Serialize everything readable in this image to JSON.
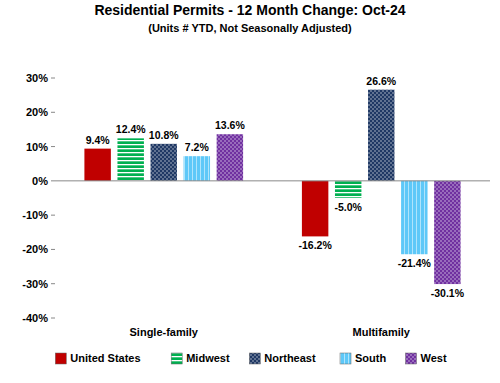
{
  "chart_data": {
    "type": "bar",
    "title": "Residential Permits - 12 Month Change: Oct-24",
    "subtitle": "(Units # YTD, Not Seasonally Adjusted)",
    "categories": [
      "Single-family",
      "Multifamily"
    ],
    "series": [
      {
        "name": "United States",
        "color": "#c00000",
        "values": [
          9.4,
          -16.2
        ],
        "value_labels": [
          "9.4%",
          "-16.2%"
        ]
      },
      {
        "name": "Midwest",
        "color": "#00b050",
        "values": [
          12.4,
          -5.0
        ],
        "value_labels": [
          "12.4%",
          "-5.0%"
        ]
      },
      {
        "name": "Northeast",
        "color": "#1f3864",
        "values": [
          10.8,
          26.6
        ],
        "value_labels": [
          "10.8%",
          "26.6%"
        ]
      },
      {
        "name": "South",
        "color": "#5ec8f8",
        "values": [
          7.2,
          -21.4
        ],
        "value_labels": [
          "7.2%",
          "-21.4%"
        ]
      },
      {
        "name": "West",
        "color": "#7030a0",
        "values": [
          13.6,
          -30.1
        ],
        "value_labels": [
          "13.6%",
          "-30.1%"
        ]
      }
    ],
    "ylim": [
      -40,
      30
    ],
    "yticks": [
      {
        "value": -40,
        "label": "-40%"
      },
      {
        "value": -30,
        "label": "-30%"
      },
      {
        "value": -20,
        "label": "-20%"
      },
      {
        "value": -10,
        "label": "-10%"
      },
      {
        "value": 0,
        "label": "0%"
      },
      {
        "value": 10,
        "label": "10%"
      },
      {
        "value": 20,
        "label": "20%"
      },
      {
        "value": 30,
        "label": "30%"
      }
    ],
    "grid": false,
    "legend": "bottom",
    "data_labels": true
  }
}
